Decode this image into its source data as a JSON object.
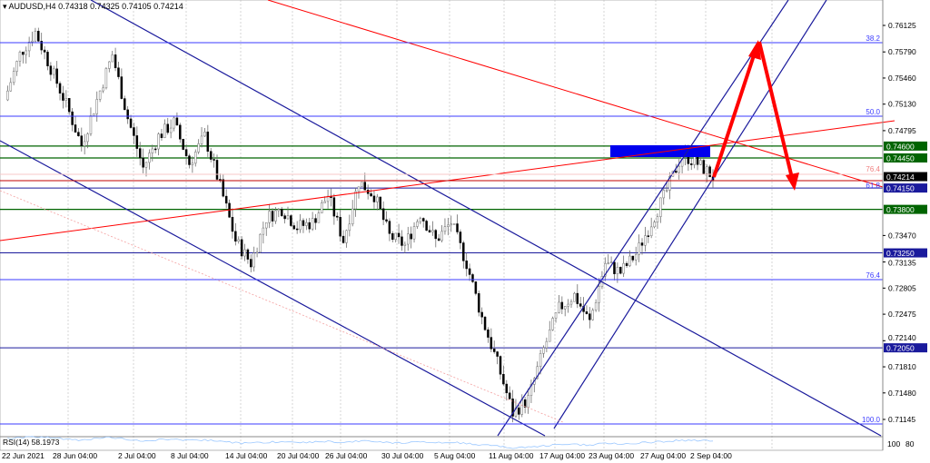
{
  "header": {
    "symbol_timeframe": "AUDUSD,H4",
    "values": "0.74318 0.74325 0.74105 0.74214",
    "menu_icon": "triangle-down-icon"
  },
  "indicator": {
    "label": "RSI(14) 58.1973",
    "levels": [
      "100",
      "80"
    ]
  },
  "colors": {
    "bullish": "#000000",
    "wick": "#6e6e6e",
    "trend_navy": "#1a1a9c",
    "red": "#ff0000",
    "green_level": "#006400",
    "fib_blue": "#3b3bff",
    "rectangle": "#0000ee",
    "rsi": "#9cc8ff"
  },
  "chart_data": {
    "type": "candlestick",
    "title": "AUDUSD,H4",
    "ylim": [
      0.71,
      0.7645
    ],
    "y_ticks": [
      "0.76125",
      "0.75790",
      "0.75460",
      "0.75130",
      "0.74795",
      "0.73470",
      "0.73135",
      "0.72805",
      "0.72475",
      "0.72140",
      "0.71810",
      "0.71480",
      "0.71145"
    ],
    "x_ticks": [
      "22 Jun 2021",
      "28 Jun 04:00",
      "2 Jul 04:00",
      "8 Jul 04:00",
      "14 Jul 04:00",
      "20 Jul 04:00",
      "26 Jul 04:00",
      "30 Jul 04:00",
      "5 Aug 04:00",
      "11 Aug 04:00",
      "17 Aug 04:00",
      "23 Aug 04:00",
      "27 Aug 04:00",
      "2 Sep 04:00"
    ],
    "close_path": [
      0.75184,
      0.75758,
      0.76045,
      0.75586,
      0.75127,
      0.7461,
      0.75184,
      0.75758,
      0.74955,
      0.74324,
      0.74725,
      0.74897,
      0.74381,
      0.74725,
      0.74094,
      0.73406,
      0.73119,
      0.73692,
      0.73807,
      0.73578,
      0.73635,
      0.73979,
      0.73406,
      0.74151,
      0.73979,
      0.73463,
      0.73348,
      0.7375,
      0.73406,
      0.73635,
      0.73119,
      0.7243,
      0.71857,
      0.71226,
      0.71398,
      0.72029,
      0.72545,
      0.72717,
      0.72373,
      0.73119,
      0.73004,
      0.73233,
      0.73635,
      0.74037,
      0.74496,
      0.74381,
      0.74214
    ],
    "current_price": "0.74214",
    "green_levels": [
      {
        "price": 0.746,
        "label": "0.74600"
      },
      {
        "price": 0.7445,
        "label": "0.74450"
      },
      {
        "price": 0.738,
        "label": "0.73800"
      }
    ],
    "navy_levels": [
      {
        "price": 0.7415,
        "label": "0.74150"
      },
      {
        "price": 0.7325,
        "label": "0.73250"
      },
      {
        "price": 0.7205,
        "label": "0.72050"
      }
    ],
    "fib_levels": [
      "38.2",
      "50.0",
      "61.8",
      "76.4",
      "76.4",
      "100.0"
    ]
  }
}
